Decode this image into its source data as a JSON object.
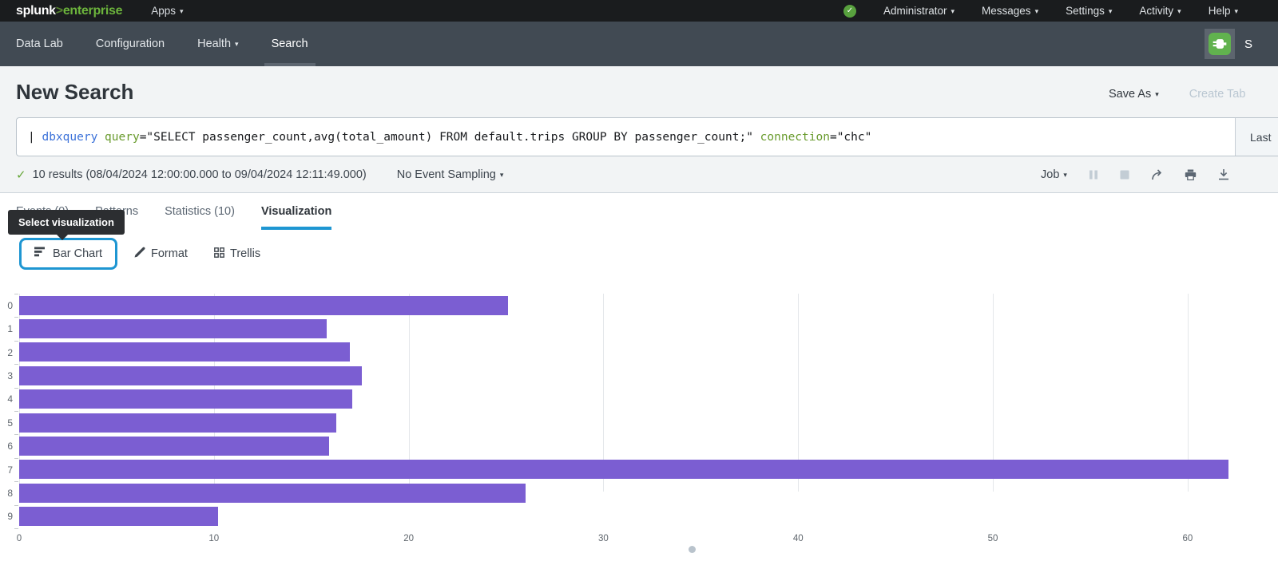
{
  "topbar": {
    "logo_splunk": "splunk",
    "logo_gt": ">",
    "logo_product": "enterprise",
    "apps_label": "Apps",
    "menus": [
      {
        "label": "Administrator"
      },
      {
        "label": "Messages"
      },
      {
        "label": "Settings"
      },
      {
        "label": "Activity"
      },
      {
        "label": "Help"
      }
    ]
  },
  "appnav": {
    "items": [
      {
        "label": "Data Lab"
      },
      {
        "label": "Configuration"
      },
      {
        "label": "Health"
      },
      {
        "label": "Search"
      }
    ],
    "app_name_partial": "S"
  },
  "header": {
    "title": "New Search",
    "save_as_label": "Save As",
    "create_tab_label": "Create Tab"
  },
  "search": {
    "tokens": [
      {
        "text": "| "
      },
      {
        "text": "dbxquery"
      },
      {
        "text": " "
      },
      {
        "text": "query"
      },
      {
        "text": "=\"SELECT passenger_count,avg(total_amount) FROM default.trips GROUP BY passenger_count;\""
      },
      {
        "text": " "
      },
      {
        "text": "connection"
      },
      {
        "text": "=\"chc\""
      }
    ],
    "time_range_label": "Last"
  },
  "results": {
    "summary": "10 results (08/04/2024 12:00:00.000 to 09/04/2024 12:11:49.000)",
    "sampling_label": "No Event Sampling",
    "job_label": "Job"
  },
  "tabs": [
    {
      "label": "Events (0)"
    },
    {
      "label": "Patterns"
    },
    {
      "label": "Statistics (10)"
    },
    {
      "label": "Visualization",
      "active": true
    }
  ],
  "tooltip_text": "Select visualization",
  "viz_controls": {
    "chart_type_label": "Bar Chart",
    "format_label": "Format",
    "trellis_label": "Trellis"
  },
  "chart_data": {
    "type": "bar",
    "orientation": "horizontal",
    "title": "",
    "categories": [
      "0",
      "1",
      "2",
      "3",
      "4",
      "5",
      "6",
      "7",
      "8",
      "9"
    ],
    "values": [
      25.1,
      15.8,
      17.0,
      17.6,
      17.1,
      16.3,
      15.9,
      62.1,
      26.0,
      10.2
    ],
    "xlabel": "",
    "ylabel": "",
    "x_ticks": [
      0,
      10,
      20,
      30,
      40,
      50,
      60
    ],
    "xlim": [
      0,
      63
    ],
    "grid": true,
    "legend": false,
    "bar_color": "#7b5ed2"
  },
  "colors": {
    "accent_blue": "#1e96d2",
    "bar_purple": "#7b5ed2",
    "splunk_green": "#6cb43c",
    "status_green": "#65a637",
    "disabled_gray": "#c3cdd5",
    "nav_dark": "#414a53",
    "topbar_black": "#1a1c1e"
  }
}
